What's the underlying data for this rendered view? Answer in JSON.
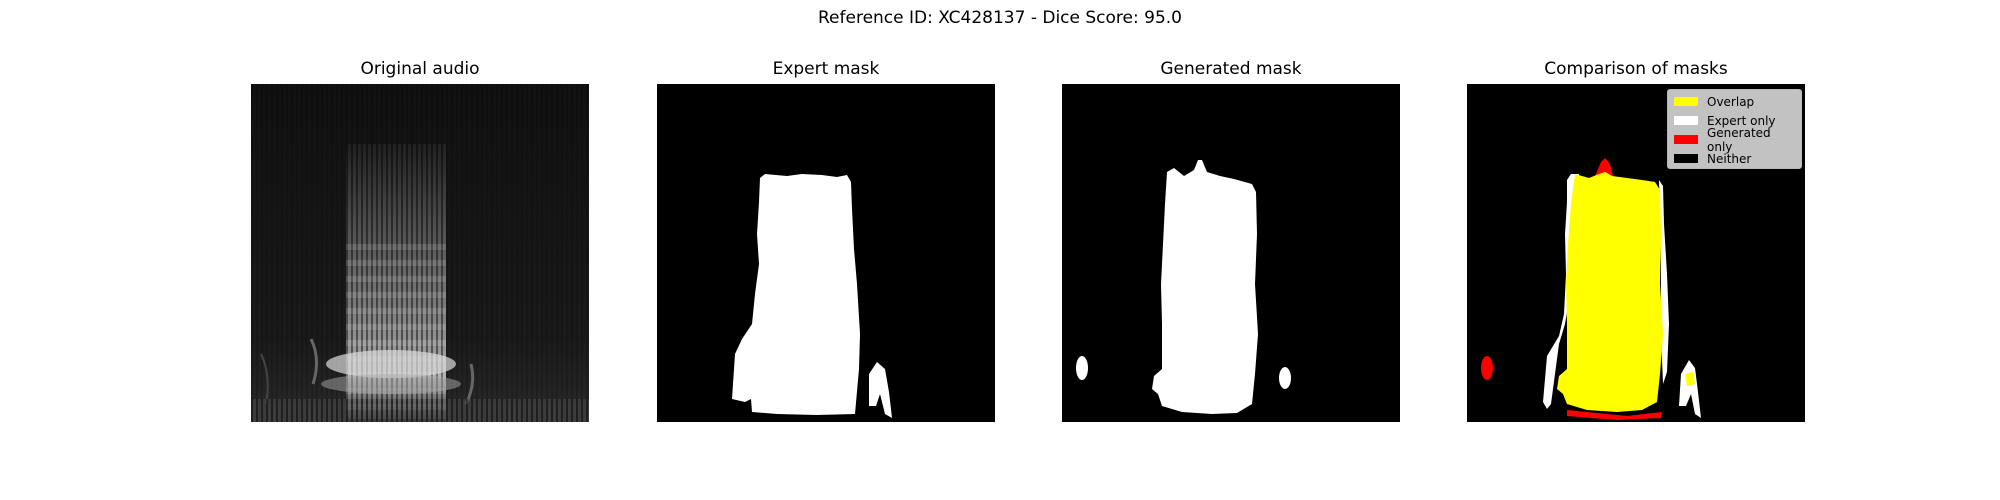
{
  "figure": {
    "suptitle": "Reference ID: XC428137 - Dice Score: 95.0"
  },
  "panels": [
    {
      "title": "Original audio"
    },
    {
      "title": "Expert mask"
    },
    {
      "title": "Generated mask"
    },
    {
      "title": "Comparison of masks"
    }
  ],
  "legend": {
    "items": [
      {
        "label": "Overlap",
        "color": "#ffff00"
      },
      {
        "label": "Expert only",
        "color": "#ffffff"
      },
      {
        "label": "Generated only",
        "color": "#ff0000"
      },
      {
        "label": "Neither",
        "color": "#000000"
      }
    ]
  },
  "colors": {
    "background": "#000000",
    "mask": "#ffffff",
    "overlap": "#ffff00",
    "expert_only": "#ffffff",
    "generated_only": "#ff0000"
  }
}
